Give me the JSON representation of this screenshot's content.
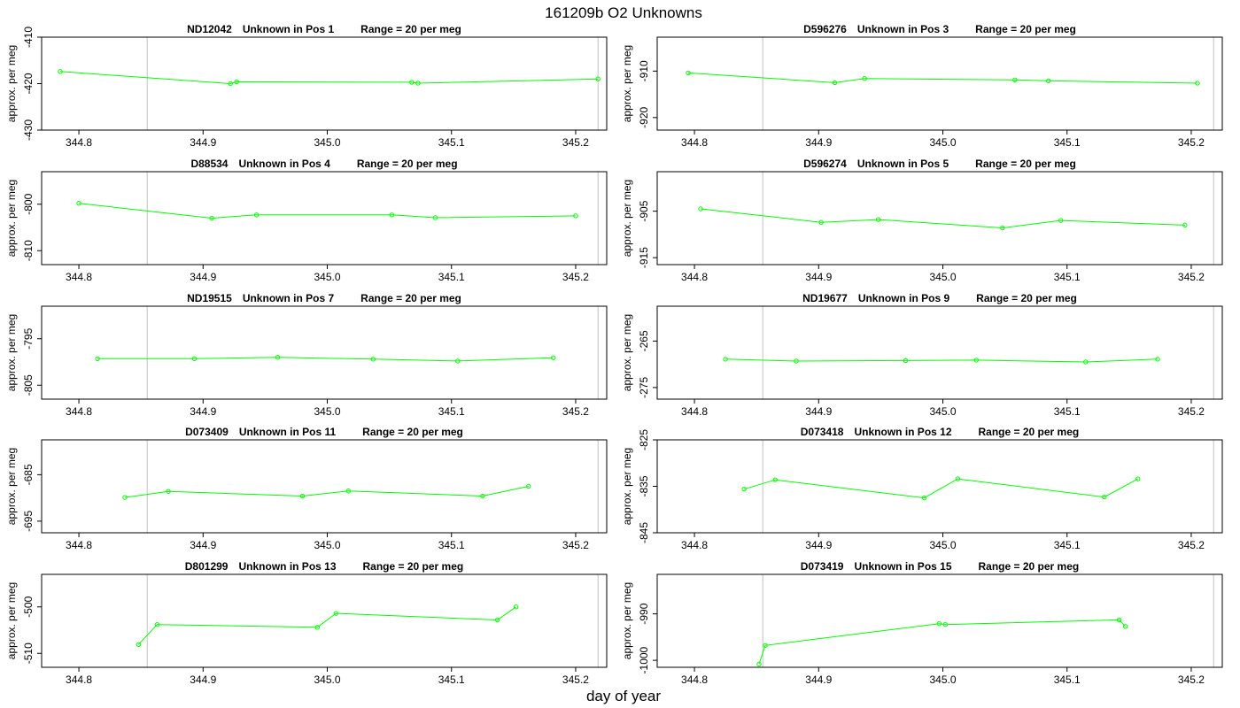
{
  "title": "161209b  O2 Unknowns",
  "xlabel": "day of year",
  "colors": {
    "series": "#00ff00",
    "frame": "#000000",
    "vline": "#c0c0c0",
    "text": "#000000"
  },
  "chart_data": [
    {
      "type": "line",
      "id": "ND12042",
      "label": "Unknown in Pos 1",
      "range_text": "Range = 20 per meg",
      "ylabel": "approx. per meg",
      "xlim": [
        344.77,
        345.225
      ],
      "ylim": [
        -430,
        -410
      ],
      "yticks": [
        -410,
        -420,
        -430
      ],
      "xticks": [
        "344.8",
        "344.9",
        "345.0",
        "345.1",
        "345.2"
      ],
      "vlines": [
        344.855,
        345.218
      ],
      "x": [
        344.785,
        344.922,
        344.927,
        345.068,
        345.073,
        345.218
      ],
      "y": [
        -417.4,
        -420.0,
        -419.6,
        -419.7,
        -419.9,
        -419.0
      ]
    },
    {
      "type": "line",
      "id": "D596276",
      "label": "Unknown in Pos 3",
      "range_text": "Range = 20 per meg",
      "ylabel": "approx. per meg",
      "xlim": [
        344.77,
        345.225
      ],
      "ylim": [
        -922.7,
        -902.7
      ],
      "yticks": [
        -910,
        -920
      ],
      "xticks": [
        "344.8",
        "344.9",
        "345.0",
        "345.1",
        "345.2"
      ],
      "vlines": [
        344.855,
        345.218
      ],
      "x": [
        344.795,
        344.913,
        344.937,
        345.058,
        345.085,
        345.205
      ],
      "y": [
        -910.4,
        -912.5,
        -911.6,
        -911.9,
        -912.1,
        -912.6
      ]
    },
    {
      "type": "line",
      "id": "D88534",
      "label": "Unknown in Pos 4",
      "range_text": "Range = 20 per meg",
      "ylabel": "approx. per meg",
      "xlim": [
        344.77,
        345.225
      ],
      "ylim": [
        -813,
        -793
      ],
      "yticks": [
        -800,
        -810
      ],
      "xticks": [
        "344.8",
        "344.9",
        "345.0",
        "345.1",
        "345.2"
      ],
      "vlines": [
        344.855,
        345.218
      ],
      "x": [
        344.8,
        344.907,
        344.943,
        345.052,
        345.087,
        345.2
      ],
      "y": [
        -799.8,
        -803.0,
        -802.3,
        -802.3,
        -802.9,
        -802.5
      ]
    },
    {
      "type": "line",
      "id": "D596274",
      "label": "Unknown in Pos 5",
      "range_text": "Range = 20 per meg",
      "ylabel": "approx. per meg",
      "xlim": [
        344.77,
        345.225
      ],
      "ylim": [
        -916.5,
        -896.5
      ],
      "yticks": [
        -905,
        -915
      ],
      "xticks": [
        "344.8",
        "344.9",
        "345.0",
        "345.1",
        "345.2"
      ],
      "vlines": [
        344.855,
        345.218
      ],
      "x": [
        344.805,
        344.902,
        344.948,
        345.048,
        345.095,
        345.195
      ],
      "y": [
        -904.5,
        -907.4,
        -906.8,
        -908.6,
        -907.0,
        -908.0
      ]
    },
    {
      "type": "line",
      "id": "ND19515",
      "label": "Unknown in Pos 7",
      "range_text": "Range = 20 per meg",
      "ylabel": "approx. per meg",
      "xlim": [
        344.77,
        345.225
      ],
      "ylim": [
        -808,
        -788
      ],
      "yticks": [
        -795,
        -805
      ],
      "xticks": [
        "344.8",
        "344.9",
        "345.0",
        "345.1",
        "345.2"
      ],
      "vlines": [
        344.855,
        345.218
      ],
      "x": [
        344.815,
        344.893,
        344.96,
        345.037,
        345.105,
        345.182
      ],
      "y": [
        -799.3,
        -799.3,
        -799.0,
        -799.4,
        -799.8,
        -799.1
      ]
    },
    {
      "type": "line",
      "id": "ND19677",
      "label": "Unknown in Pos 9",
      "range_text": "Range = 20 per meg",
      "ylabel": "approx. per meg",
      "xlim": [
        344.77,
        345.225
      ],
      "ylim": [
        -277.5,
        -257.5
      ],
      "yticks": [
        -265,
        -275
      ],
      "xticks": [
        "344.8",
        "344.9",
        "345.0",
        "345.1",
        "345.2"
      ],
      "vlines": [
        344.855,
        345.218
      ],
      "x": [
        344.825,
        344.882,
        344.97,
        345.027,
        345.115,
        345.173
      ],
      "y": [
        -268.9,
        -269.3,
        -269.2,
        -269.1,
        -269.5,
        -268.9
      ]
    },
    {
      "type": "line",
      "id": "D073409",
      "label": "Unknown in Pos 11",
      "range_text": "Range = 20 per meg",
      "ylabel": "approx. per meg",
      "xlim": [
        344.77,
        345.225
      ],
      "ylim": [
        -697.5,
        -677.5
      ],
      "yticks": [
        -685,
        -695
      ],
      "xticks": [
        "344.8",
        "344.9",
        "345.0",
        "345.1",
        "345.2"
      ],
      "vlines": [
        344.855,
        345.218
      ],
      "x": [
        344.837,
        344.872,
        344.98,
        345.017,
        345.125,
        345.162
      ],
      "y": [
        -689.9,
        -688.6,
        -689.6,
        -688.5,
        -689.6,
        -687.5
      ]
    },
    {
      "type": "line",
      "id": "D073418",
      "label": "Unknown in Pos 12",
      "range_text": "Range = 20 per meg",
      "ylabel": "approx. per meg",
      "xlim": [
        344.77,
        345.225
      ],
      "ylim": [
        -845,
        -825
      ],
      "yticks": [
        -825,
        -835,
        -845
      ],
      "xticks": [
        "344.8",
        "344.9",
        "345.0",
        "345.1",
        "345.2"
      ],
      "vlines": [
        344.855,
        345.218
      ],
      "x": [
        344.84,
        344.865,
        344.985,
        345.012,
        345.13,
        345.157
      ],
      "y": [
        -835.6,
        -833.6,
        -837.5,
        -833.4,
        -837.3,
        -833.4
      ]
    },
    {
      "type": "line",
      "id": "D801299",
      "label": "Unknown in Pos 13",
      "range_text": "Range = 20 per meg",
      "ylabel": "approx. per meg",
      "xlim": [
        344.77,
        345.225
      ],
      "ylim": [
        -513,
        -493
      ],
      "yticks": [
        -500,
        -510
      ],
      "xticks": [
        "344.8",
        "344.9",
        "345.0",
        "345.1",
        "345.2"
      ],
      "vlines": [
        344.855,
        345.218
      ],
      "x": [
        344.848,
        344.863,
        344.992,
        345.007,
        345.137,
        345.152
      ],
      "y": [
        -508.1,
        -503.8,
        -504.4,
        -501.4,
        -502.8,
        -500.0
      ]
    },
    {
      "type": "line",
      "id": "D073419",
      "label": "Unknown in Pos 15",
      "range_text": "Range = 20 per meg",
      "ylabel": "approx. per meg",
      "xlim": [
        344.77,
        345.225
      ],
      "ylim": [
        -1001.5,
        -981.5
      ],
      "yticks": [
        -990,
        -1000
      ],
      "xticks": [
        "344.8",
        "344.9",
        "345.0",
        "345.1",
        "345.2"
      ],
      "vlines": [
        344.855,
        345.218
      ],
      "x": [
        344.852,
        344.857,
        344.997,
        345.002,
        345.142,
        345.147
      ],
      "y": [
        -1000.8,
        -996.8,
        -992.1,
        -992.3,
        -991.3,
        -992.7
      ]
    }
  ]
}
